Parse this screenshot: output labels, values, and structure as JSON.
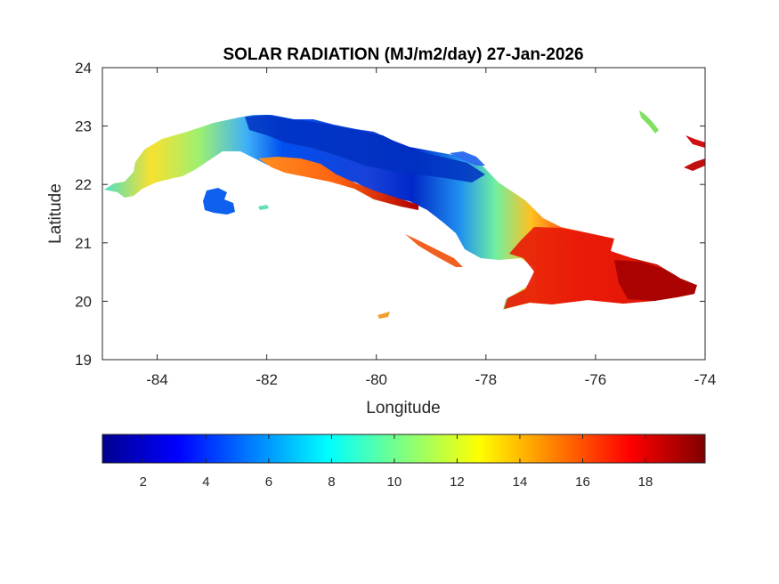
{
  "chart_data": {
    "type": "heatmap",
    "title": "SOLAR RADIATION (MJ/m2/day) 27-Jan-2026",
    "xlabel": "Longitude",
    "ylabel": "Latitude",
    "xlim": [
      -85,
      -74
    ],
    "ylim": [
      19,
      24
    ],
    "x_ticks": [
      -84,
      -82,
      -80,
      -78,
      -76,
      -74
    ],
    "y_ticks": [
      19,
      20,
      21,
      22,
      23,
      24
    ],
    "x_tick_labels": [
      "-84",
      "-82",
      "-80",
      "-78",
      "-76",
      "-74"
    ],
    "y_tick_labels": [
      "19",
      "20",
      "21",
      "22",
      "23",
      "24"
    ],
    "grid": false,
    "colormap": "jet",
    "colorbar": {
      "orientation": "horizontal",
      "placement": "bottom",
      "range": [
        0.7,
        19.9
      ],
      "ticks": [
        2,
        4,
        6,
        8,
        10,
        12,
        14,
        16,
        18
      ],
      "tick_labels": [
        "2",
        "4",
        "6",
        "8",
        "10",
        "12",
        "14",
        "16",
        "18"
      ]
    },
    "regions": [
      {
        "name_ref": "far-west",
        "lon": [
          -84.9,
          -84.0
        ],
        "lat": [
          21.8,
          22.3
        ],
        "value": 10
      },
      {
        "name_ref": "pinar-del-rio-north",
        "lon": [
          -84.0,
          -83.0
        ],
        "lat": [
          22.2,
          22.8
        ],
        "value": 13
      },
      {
        "name_ref": "artemisa",
        "lon": [
          -83.0,
          -82.2
        ],
        "lat": [
          22.8,
          23.1
        ],
        "value": 8
      },
      {
        "name_ref": "havana",
        "lon": [
          -82.2,
          -81.6
        ],
        "lat": [
          22.9,
          23.15
        ],
        "value": 2
      },
      {
        "name_ref": "zapata-peninsula",
        "lon": [
          -82.0,
          -81.0
        ],
        "lat": [
          22.1,
          22.5
        ],
        "value": 16
      },
      {
        "name_ref": "south-coast-cienfuegos",
        "lon": [
          -81.0,
          -80.0
        ],
        "lat": [
          21.9,
          22.2
        ],
        "value": 18
      },
      {
        "name_ref": "north-central",
        "lon": [
          -81.0,
          -79.0
        ],
        "lat": [
          22.2,
          22.9
        ],
        "value": 2
      },
      {
        "name_ref": "camaguey-north",
        "lon": [
          -79.0,
          -78.0
        ],
        "lat": [
          21.5,
          22.3
        ],
        "value": 7
      },
      {
        "name_ref": "camaguey-south",
        "lon": [
          -78.5,
          -77.5
        ],
        "lat": [
          20.9,
          21.5
        ],
        "value": 12
      },
      {
        "name_ref": "las-tunas-holguin",
        "lon": [
          -77.5,
          -75.5
        ],
        "lat": [
          20.6,
          21.1
        ],
        "value": 16
      },
      {
        "name_ref": "granma-santiago",
        "lon": [
          -77.7,
          -75.5
        ],
        "lat": [
          19.9,
          20.6
        ],
        "value": 17
      },
      {
        "name_ref": "guantanamo",
        "lon": [
          -75.5,
          -74.2
        ],
        "lat": [
          19.9,
          20.5
        ],
        "value": 19
      },
      {
        "name_ref": "isla-de-la-juventud",
        "lon": [
          -83.1,
          -82.6
        ],
        "lat": [
          21.45,
          21.9
        ],
        "value": 4
      }
    ]
  }
}
